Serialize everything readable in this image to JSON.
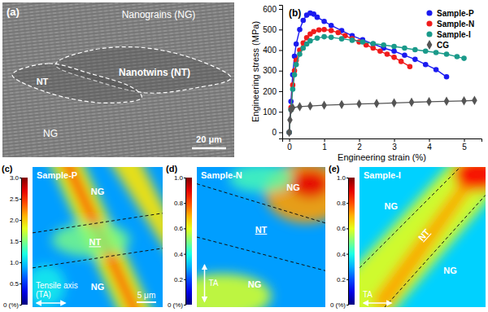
{
  "chart_data": {
    "type": "line",
    "panel_label": "(b)",
    "x_label": "Engineering strain (%)",
    "y_label": "Engineering stress (MPa)",
    "xlim": [
      -0.2,
      5.5
    ],
    "ylim": [
      -30,
      620
    ],
    "xticks": [
      0,
      1,
      2,
      3,
      4,
      5
    ],
    "yticks": [
      0,
      100,
      200,
      300,
      400,
      500,
      600
    ],
    "grid": false,
    "legend": "upper right",
    "series": [
      {
        "name": "Sample-P",
        "color": "#1b1bf0",
        "marker": "circle",
        "x": [
          0,
          0.05,
          0.1,
          0.15,
          0.2,
          0.3,
          0.4,
          0.5,
          0.6,
          0.7,
          0.8,
          1.0,
          1.2,
          1.5,
          1.8,
          2.1,
          2.4,
          2.7,
          3.0,
          3.3,
          3.6,
          3.9,
          4.2,
          4.5
        ],
        "values": [
          0,
          150,
          280,
          370,
          430,
          500,
          545,
          570,
          580,
          575,
          560,
          540,
          520,
          495,
          470,
          450,
          430,
          410,
          395,
          375,
          355,
          330,
          305,
          270
        ]
      },
      {
        "name": "Sample-N",
        "color": "#f01c1c",
        "marker": "circle",
        "x": [
          0,
          0.05,
          0.1,
          0.15,
          0.2,
          0.3,
          0.4,
          0.5,
          0.6,
          0.7,
          0.85,
          1.0,
          1.2,
          1.4,
          1.6,
          1.8,
          2.0,
          2.2,
          2.4,
          2.6,
          2.8,
          3.0,
          3.2,
          3.45
        ],
        "values": [
          0,
          120,
          230,
          300,
          350,
          400,
          435,
          460,
          478,
          490,
          498,
          500,
          495,
          485,
          470,
          455,
          440,
          425,
          410,
          395,
          380,
          365,
          345,
          320
        ]
      },
      {
        "name": "Sample-I",
        "color": "#1a9a8a",
        "marker": "circle",
        "x": [
          0,
          0.05,
          0.1,
          0.15,
          0.2,
          0.3,
          0.4,
          0.5,
          0.6,
          0.8,
          1.0,
          1.2,
          1.5,
          1.8,
          2.1,
          2.4,
          2.7,
          3.0,
          3.3,
          3.6,
          3.9,
          4.2,
          4.5,
          4.8,
          5.0
        ],
        "values": [
          0,
          110,
          210,
          280,
          330,
          380,
          410,
          430,
          445,
          458,
          465,
          462,
          455,
          448,
          440,
          432,
          425,
          418,
          410,
          402,
          395,
          388,
          380,
          368,
          360
        ]
      },
      {
        "name": "CG",
        "color": "#555555",
        "marker": "diamond",
        "x": [
          0,
          0.02,
          0.05,
          0.1,
          0.3,
          0.6,
          1.0,
          1.5,
          2.0,
          2.5,
          3.0,
          3.5,
          4.0,
          4.5,
          5.0,
          5.3
        ],
        "values": [
          0,
          60,
          110,
          120,
          125,
          128,
          132,
          135,
          138,
          140,
          143,
          146,
          149,
          151,
          153,
          155
        ]
      }
    ]
  },
  "micrograph": {
    "panel_label": "(a)",
    "labels": [
      "Nanograins (NG)",
      "Nanotwins (NT)",
      "NT",
      "NG"
    ],
    "scale_bar": "20 μm"
  },
  "strain_maps": [
    {
      "panel_label": "(c)",
      "sample": "Sample-P",
      "regions": [
        "NG",
        "NT",
        "NG"
      ],
      "tensile_axis": [
        "Tensile axis",
        "(TA)"
      ],
      "scale_bar": "5 μm",
      "colorbar": {
        "range": [
          0,
          3
        ],
        "ticks": [
          {
            "value": 0,
            "label": "0 (%)"
          },
          0.5,
          {
            "value": 1,
            "label": "1.0"
          },
          1.5,
          {
            "value": 2,
            "label": "2.0"
          },
          2.5,
          {
            "value": 3,
            "label": "3.0"
          }
        ]
      }
    },
    {
      "panel_label": "(d)",
      "sample": "Sample-N",
      "regions": [
        "NG",
        "NT",
        "NG"
      ],
      "tensile_axis": [
        "TA"
      ],
      "colorbar": {
        "range": [
          0,
          1
        ],
        "ticks": [
          {
            "value": 0,
            "label": "0 (%)"
          },
          0.2,
          0.4,
          0.6,
          0.8,
          {
            "value": 1,
            "label": "1.0"
          }
        ]
      }
    },
    {
      "panel_label": "(e)",
      "sample": "Sample-I",
      "regions": [
        "NG",
        "NT",
        "NG"
      ],
      "tensile_axis": [
        "TA"
      ],
      "colorbar": {
        "range": [
          0,
          1
        ],
        "ticks": [
          {
            "value": 0,
            "label": "0 (%)"
          },
          0.2,
          0.4,
          0.6,
          0.8,
          {
            "value": 1,
            "label": "1.0"
          }
        ]
      }
    }
  ]
}
